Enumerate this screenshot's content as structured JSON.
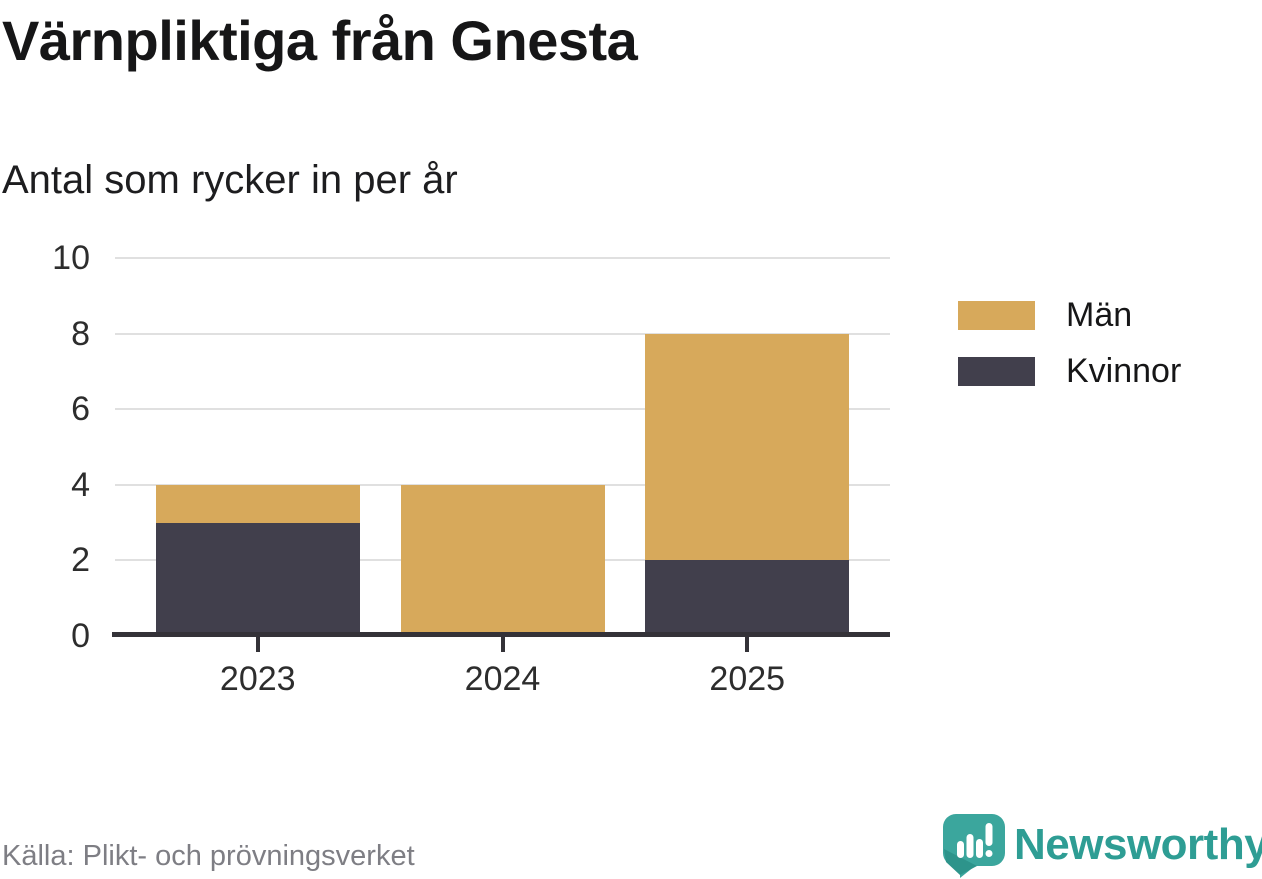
{
  "chart_data": {
    "type": "bar",
    "stacked": true,
    "title": "Värnpliktiga från Gnesta",
    "subtitle": "Antal som rycker in per år",
    "categories": [
      "2023",
      "2024",
      "2025"
    ],
    "series": [
      {
        "name": "Män",
        "color": "#d7a95b",
        "values": [
          1,
          4,
          6
        ]
      },
      {
        "name": "Kvinnor",
        "color": "#413f4c",
        "values": [
          3,
          0,
          2
        ]
      }
    ],
    "stack_order_bottom_to_top": [
      "Kvinnor",
      "Män"
    ],
    "xlabel": "",
    "ylabel": "",
    "ylim": [
      0,
      10
    ],
    "yticks": [
      0,
      2,
      4,
      6,
      8,
      10
    ],
    "grid": true,
    "legend_position": "right",
    "colors": {
      "grid_line": "#e0e0e0",
      "axis_line": "#343238",
      "tick_label": "#2d2d2d"
    }
  },
  "footer": {
    "source": "Källa: Plikt- och prövningsverket",
    "brand": "Newsworthy",
    "brand_color": "#2e9d94"
  }
}
